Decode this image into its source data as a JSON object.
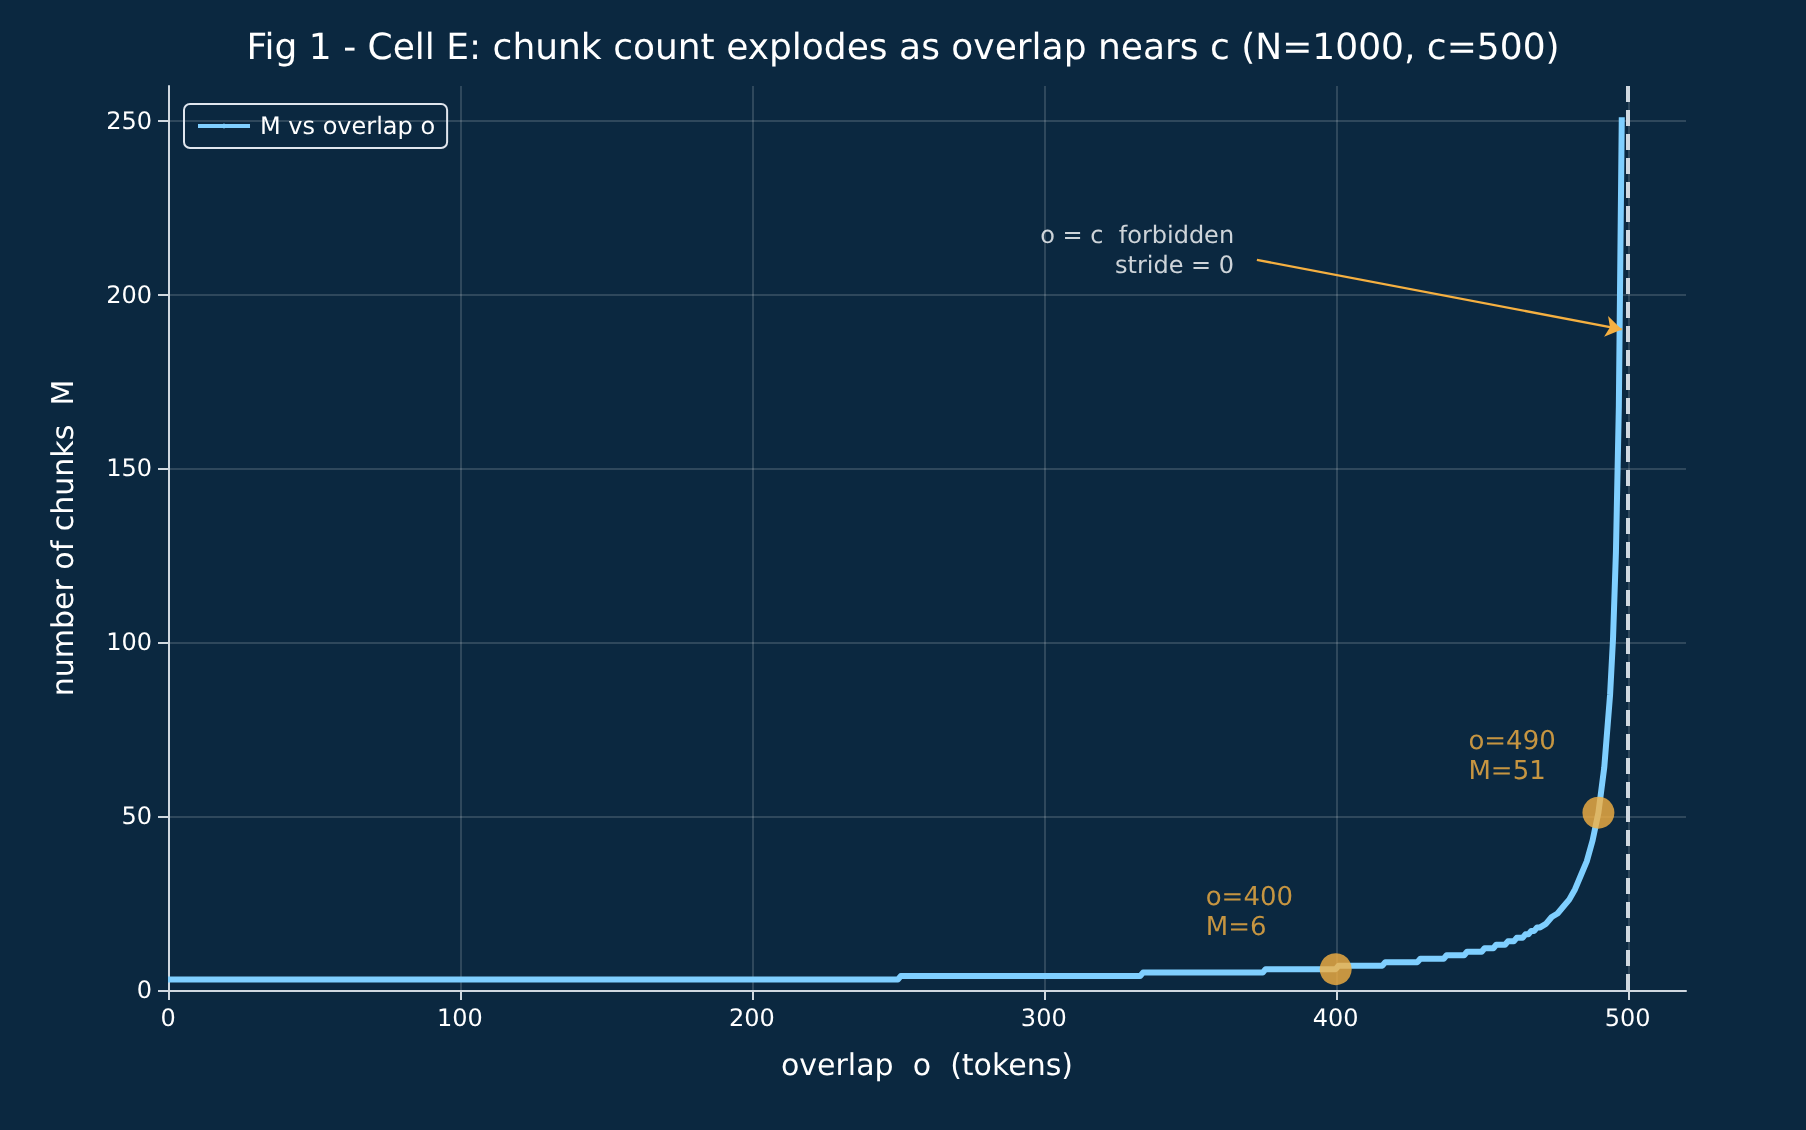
{
  "chart_data": {
    "type": "line",
    "title": "Fig 1 - Cell E: chunk count explodes as overlap nears c (N=1000, c=500)",
    "xlabel": "overlap  o  (tokens)",
    "ylabel": "number of chunks  M",
    "xlim": [
      0,
      520
    ],
    "xticks": [
      0,
      100,
      200,
      300,
      400,
      500
    ],
    "ylim": [
      0,
      260
    ],
    "yticks": [
      0,
      50,
      100,
      150,
      200,
      250
    ],
    "grid": true,
    "legend": "top left",
    "marker": "none",
    "line_style": "solid",
    "series": [
      {
        "name": "M vs overlap o",
        "color": "#7fcfff",
        "x": [
          0,
          250,
          251,
          333,
          334,
          375,
          376,
          400,
          401,
          416,
          417,
          428,
          429,
          437,
          438,
          444,
          445,
          450,
          451,
          454,
          455,
          458,
          459,
          461,
          462,
          464,
          465,
          466,
          467,
          468,
          469,
          470,
          472,
          474,
          476,
          478,
          480,
          482,
          484,
          486,
          488,
          490,
          492,
          494,
          495,
          496,
          497,
          498
        ],
        "values": [
          3,
          3,
          4,
          4,
          5,
          5,
          6,
          6,
          7,
          7,
          8,
          8,
          9,
          9,
          10,
          10,
          11,
          11,
          12,
          12,
          13,
          13,
          14,
          14,
          15,
          15,
          16,
          16,
          17,
          17,
          18,
          18,
          19,
          21,
          22,
          24,
          26,
          29,
          33,
          37,
          43,
          51,
          64,
          85,
          101,
          126,
          168,
          251
        ]
      },
      {
        "type": "scatter",
        "color": "#f5b041",
        "marker": "circle",
        "x": [
          400,
          490
        ],
        "values": [
          6,
          51
        ]
      }
    ],
    "ref_lines": [
      {
        "axis": "x",
        "value": 500,
        "color": "#d0d8e0",
        "line_style": "dashed"
      }
    ],
    "annotations": [
      {
        "text": "o=400\nM=6",
        "x": 400,
        "y": 6
      },
      {
        "text": "o=490\nM=51",
        "x": 490,
        "y": 51
      },
      {
        "text": "o = c  forbidden\n         stride = 0",
        "x": 498,
        "y": 190
      }
    ]
  }
}
